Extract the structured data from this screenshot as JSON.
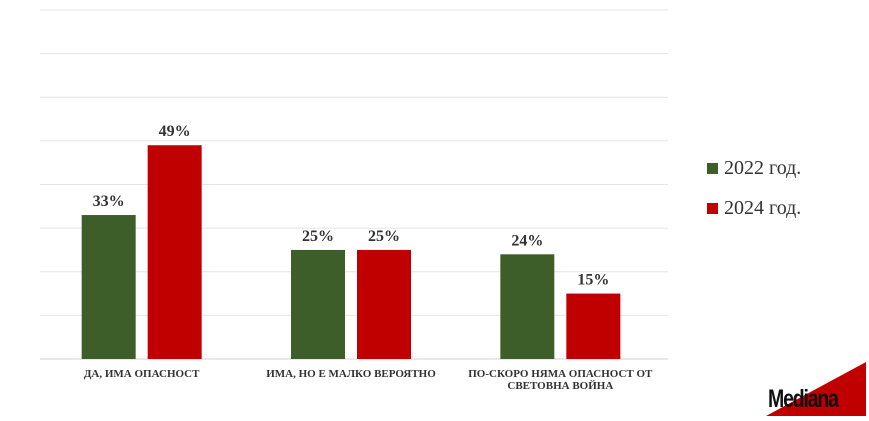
{
  "chart_data": {
    "type": "bar",
    "categories": [
      [
        "ДА, ИМА ОПАСНОСТ"
      ],
      [
        "ИМА, НО Е МАЛКО ВЕРОЯТНО"
      ],
      [
        "ПО-СКОРО НЯМА ОПАСНОСТ ОТ",
        "СВЕТОВНА ВОЙНА"
      ]
    ],
    "series": [
      {
        "name": "2022 год.",
        "color": "#3d5e29",
        "values": [
          33,
          25,
          24
        ]
      },
      {
        "name": "2024 год.",
        "color": "#c00000",
        "values": [
          49,
          25,
          15
        ]
      }
    ],
    "value_suffix": "%",
    "ylim": [
      0,
      80
    ],
    "grid": true,
    "legend": "right"
  },
  "logo": {
    "text": "Mediana",
    "accent_color": "#c00000"
  }
}
